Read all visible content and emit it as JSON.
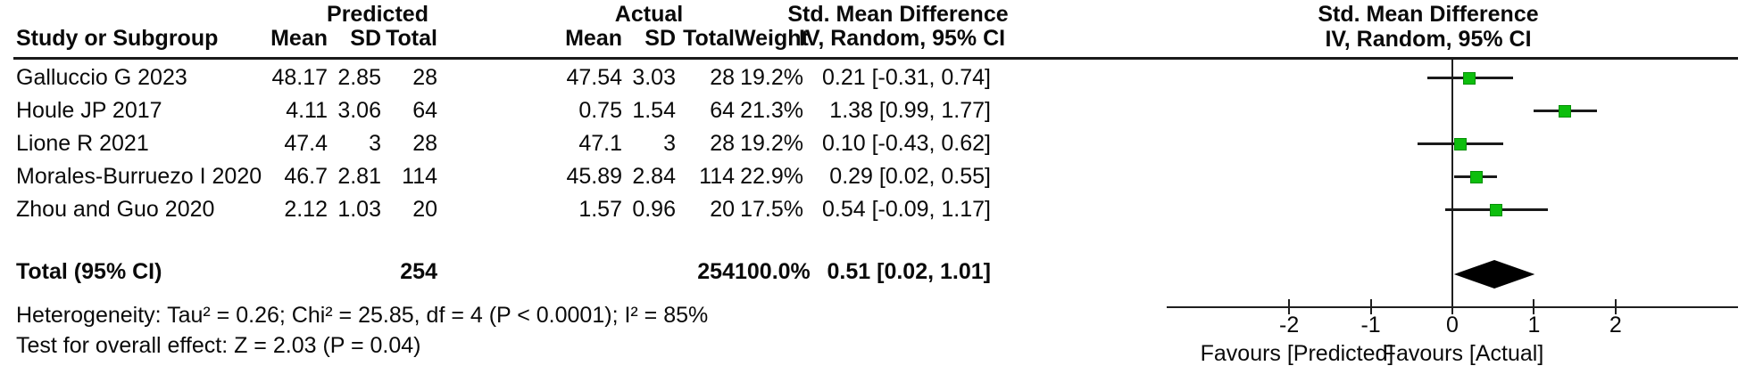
{
  "table": {
    "group_headers": {
      "predicted": "Predicted",
      "actual": "Actual",
      "smd": "Std. Mean Difference"
    },
    "column_headers": {
      "study": "Study or Subgroup",
      "p_mean": "Mean",
      "p_sd": "SD",
      "p_total": "Total",
      "a_mean": "Mean",
      "a_sd": "SD",
      "a_total": "Total",
      "weight": "Weight",
      "smd": "IV, Random, 95% CI"
    },
    "rows": [
      {
        "study": "Galluccio G 2023",
        "p_mean": "48.17",
        "p_sd": "2.85",
        "p_total": "28",
        "a_mean": "47.54",
        "a_sd": "3.03",
        "a_total": "28",
        "weight": "19.2%",
        "smd": "0.21 [-0.31, 0.74]"
      },
      {
        "study": "Houle JP 2017",
        "p_mean": "4.11",
        "p_sd": "3.06",
        "p_total": "64",
        "a_mean": "0.75",
        "a_sd": "1.54",
        "a_total": "64",
        "weight": "21.3%",
        "smd": "1.38 [0.99, 1.77]"
      },
      {
        "study": "Lione R 2021",
        "p_mean": "47.4",
        "p_sd": "3",
        "p_total": "28",
        "a_mean": "47.1",
        "a_sd": "3",
        "a_total": "28",
        "weight": "19.2%",
        "smd": "0.10 [-0.43, 0.62]"
      },
      {
        "study": "Morales-Burruezo I 2020",
        "p_mean": "46.7",
        "p_sd": "2.81",
        "p_total": "114",
        "a_mean": "45.89",
        "a_sd": "2.84",
        "a_total": "114",
        "weight": "22.9%",
        "smd": "0.29 [0.02, 0.55]"
      },
      {
        "study": "Zhou and Guo 2020",
        "p_mean": "2.12",
        "p_sd": "1.03",
        "p_total": "20",
        "a_mean": "1.57",
        "a_sd": "0.96",
        "a_total": "20",
        "weight": "17.5%",
        "smd": "0.54 [-0.09, 1.17]"
      }
    ],
    "total_row": {
      "study": "Total (95% CI)",
      "p_total": "254",
      "a_total": "254",
      "weight": "100.0%",
      "smd": "0.51 [0.02, 1.01]"
    },
    "heterogeneity": "Heterogeneity: Tau² = 0.26; Chi² = 25.85, df = 4 (P < 0.0001); I² = 85%",
    "overall_effect": "Test for overall effect: Z = 2.03 (P = 0.04)"
  },
  "plot": {
    "header_line1": "Std. Mean Difference",
    "header_line2": "IV, Random, 95% CI",
    "favours_left": "Favours [Predicted]",
    "favours_right": "Favours [Actual]"
  },
  "chart_data": {
    "type": "scatter",
    "subtype": "forest-plot",
    "title": "Std. Mean Difference, IV, Random, 95% CI",
    "studies": [
      "Galluccio G 2023",
      "Houle JP 2017",
      "Lione R 2021",
      "Morales-Burruezo I 2020",
      "Zhou and Guo 2020"
    ],
    "series": [
      {
        "name": "Std. Mean Difference (IV, Random, 95% CI)",
        "estimates": [
          0.21,
          1.38,
          0.1,
          0.29,
          0.54
        ],
        "ci_low": [
          -0.31,
          0.99,
          -0.43,
          0.02,
          -0.09
        ],
        "ci_high": [
          0.74,
          1.77,
          0.62,
          0.55,
          1.17
        ],
        "weights_pct": [
          19.2,
          21.3,
          19.2,
          22.9,
          17.5
        ]
      }
    ],
    "total": {
      "label": "Total (95% CI)",
      "estimate": 0.51,
      "ci_low": 0.02,
      "ci_high": 1.01,
      "weight_pct": 100.0
    },
    "xlim": [
      -3.5,
      3.5
    ],
    "xticks": [
      -2,
      -1,
      0,
      1,
      2
    ],
    "xlabel_left": "Favours [Predicted]",
    "xlabel_right": "Favours [Actual]",
    "grid": false,
    "marker_color": "#0dbe0d",
    "diamond_color": "#000000"
  }
}
